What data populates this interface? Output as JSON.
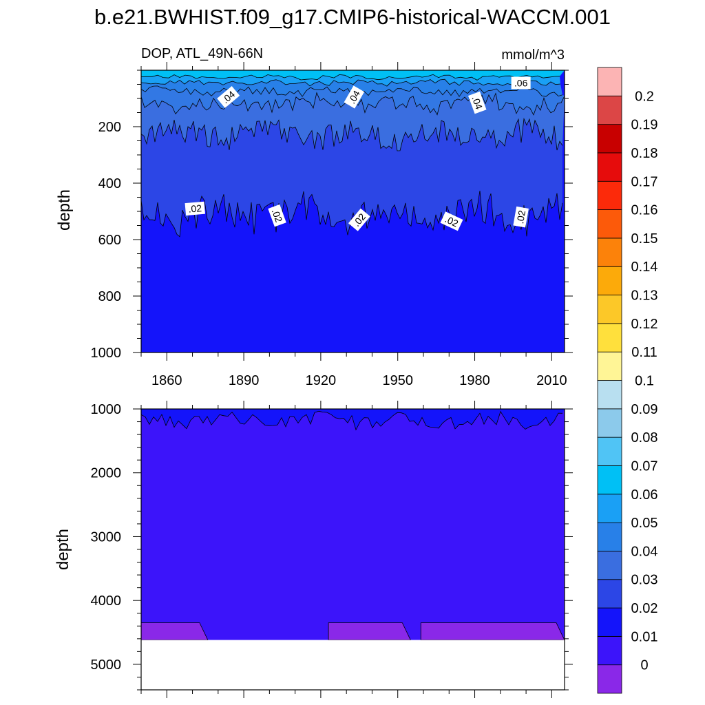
{
  "chart_data": {
    "type": "heatmap",
    "title": "b.e21.BWHIST.f09_g17.CMIP6-historical-WACCM.001",
    "left_subtitle": "DOP, ATL_49N-66N",
    "right_subtitle": "mmol/m^3",
    "xrange": [
      1850,
      2015
    ],
    "xticks": [
      1860,
      1890,
      1920,
      1950,
      1980,
      2010
    ],
    "colorbar": {
      "levels": [
        "0",
        "0.01",
        "0.02",
        "0.03",
        "0.04",
        "0.05",
        "0.06",
        "0.07",
        "0.08",
        "0.09",
        "0.1",
        "0.11",
        "0.12",
        "0.13",
        "0.14",
        "0.15",
        "0.16",
        "0.17",
        "0.18",
        "0.19",
        "0.2"
      ],
      "colors": [
        "#8a28e8",
        "#3c14fa",
        "#1414fa",
        "#2c46e6",
        "#3a6ee0",
        "#2880e8",
        "#1aa0f5",
        "#00c0f5",
        "#50c4f5",
        "#8ccaeb",
        "#b8dff0",
        "#fff596",
        "#ffe03c",
        "#fcc828",
        "#fcaa0a",
        "#fc820a",
        "#fc5a0a",
        "#fc2a0a",
        "#e60c0c",
        "#c80000",
        "#dc4646",
        "#fcb4b4"
      ]
    },
    "panels": [
      {
        "ylabel": "depth",
        "yrange": [
          0,
          1000
        ],
        "yticks": [
          200,
          400,
          600,
          800,
          1000
        ],
        "contour_labels": [
          {
            "text": ".04",
            "year": 1884,
            "depth": 95,
            "angle": -40
          },
          {
            "text": ".04",
            "year": 1933,
            "depth": 95,
            "angle": -60
          },
          {
            "text": ".04",
            "year": 1981,
            "depth": 115,
            "angle": 70
          },
          {
            "text": ".06",
            "year": 1998,
            "depth": 45,
            "angle": 0
          },
          {
            "text": ".02",
            "year": 1871,
            "depth": 490,
            "angle": -5
          },
          {
            "text": ".02",
            "year": 1903,
            "depth": 515,
            "angle": 70
          },
          {
            "text": ".02",
            "year": 1935,
            "depth": 530,
            "angle": -50
          },
          {
            "text": ".02",
            "year": 1971,
            "depth": 535,
            "angle": 25
          },
          {
            "text": ".02",
            "year": 1998,
            "depth": 520,
            "angle": -80
          }
        ]
      },
      {
        "ylabel": "depth",
        "yrange": [
          1000,
          5400
        ],
        "yticks": [
          1000,
          2000,
          3000,
          4000,
          5000
        ],
        "data_bottom": 4620
      }
    ]
  }
}
